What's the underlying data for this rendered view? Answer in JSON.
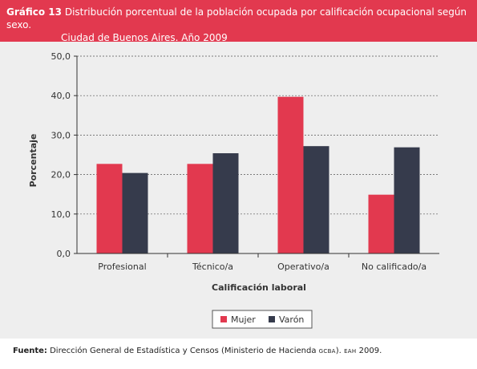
{
  "header": {
    "label": "Gráfico 13",
    "title_line1": "Distribución porcentual de la población ocupada por calificación ocupacional según sexo.",
    "title_line2": "Ciudad de Buenos Aires. Año 2009"
  },
  "chart_data": {
    "type": "bar",
    "categories": [
      "Profesional",
      "Técnico/a",
      "Operativo/a",
      "No calificado/a"
    ],
    "series": [
      {
        "name": "Mujer",
        "color": "#e2394f",
        "values": [
          22.7,
          22.7,
          39.7,
          14.9
        ]
      },
      {
        "name": "Varón",
        "color": "#363b4c",
        "values": [
          20.4,
          25.4,
          27.2,
          26.9
        ]
      }
    ],
    "xlabel": "Calificación laboral",
    "ylabel": "Porcentaje",
    "ylim": [
      0,
      50
    ],
    "yticks": [
      "0,0",
      "10,0",
      "20,0",
      "30,0",
      "40,0",
      "50,0"
    ],
    "grid": true,
    "legend_position": "bottom-center"
  },
  "footer": {
    "label": "Fuente:",
    "text_a": "Dirección General de Estadística y Censos (Ministerio de Hacienda",
    "org": "GCBA",
    "text_b": ").",
    "survey": "EAH",
    "year": "2009."
  }
}
